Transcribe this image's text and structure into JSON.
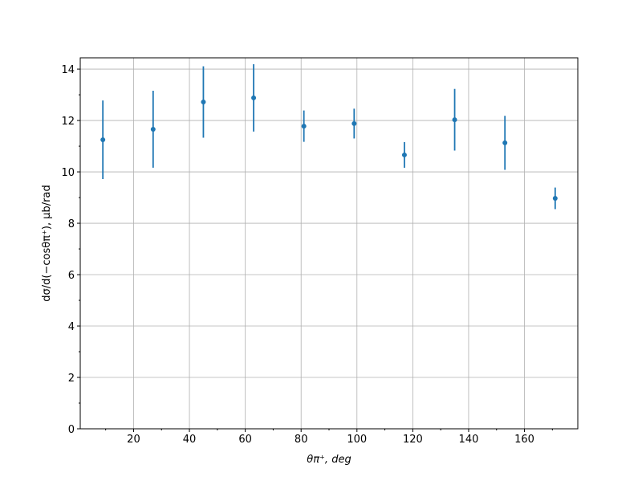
{
  "chart_data": {
    "type": "errorbar",
    "xlabel": "θπ⁺, deg",
    "ylabel": "dσ/d(−cosθπ⁺), μb/rad",
    "x": [
      9,
      27,
      45,
      63,
      81,
      99,
      117,
      135,
      153,
      171
    ],
    "series": [
      {
        "color": "#1f77b4",
        "values": [
          11.25,
          11.66,
          12.72,
          12.88,
          11.78,
          11.88,
          10.66,
          12.03,
          11.13,
          8.97
        ],
        "errors": [
          1.53,
          1.5,
          1.39,
          1.31,
          0.61,
          0.58,
          0.5,
          1.2,
          1.05,
          0.42
        ]
      }
    ],
    "xlim": [
      0.9,
      179.1
    ],
    "ylim": [
      0,
      14.44
    ],
    "xticks": [
      20,
      40,
      60,
      80,
      100,
      120,
      140,
      160
    ],
    "yticks": [
      0,
      2,
      4,
      6,
      8,
      10,
      12,
      14
    ],
    "xminorticks": [
      10,
      30,
      50,
      70,
      90,
      110,
      130,
      150,
      170
    ],
    "yminorticks": [
      1,
      3,
      5,
      7,
      9,
      11,
      13
    ],
    "grid": true
  }
}
